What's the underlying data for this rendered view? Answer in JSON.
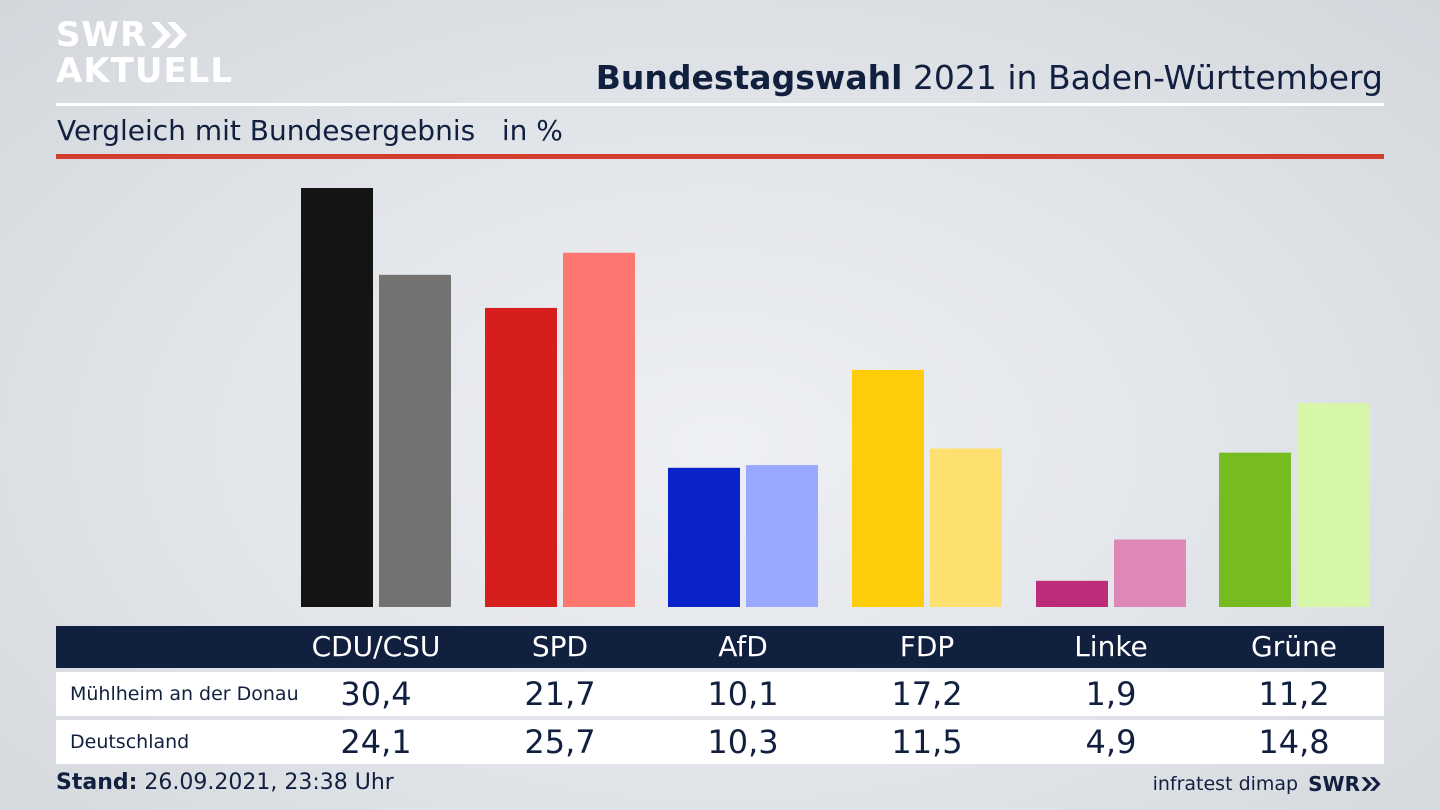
{
  "logo": {
    "line1": "SWR",
    "line2": "AKTUELL"
  },
  "header": {
    "title_bold": "Bundestagswahl",
    "title_rest": " 2021 in Baden-Württemberg"
  },
  "subtitle": "Vergleich mit Bundesergebnis   in %",
  "colors": {
    "navy": "#12203f",
    "accent_line": "#d23f2c",
    "local": [
      "#141414",
      "#d61e1e",
      "#0a23c8",
      "#ffcc0a",
      "#bb2d78",
      "#76bb1f"
    ],
    "national": [
      "#737270",
      "#ff7570",
      "#9aa9ff",
      "#fee070",
      "#df88b8",
      "#d5f7a7"
    ]
  },
  "chart_data": {
    "type": "bar",
    "title": "Bundestagswahl 2021 in Baden-Württemberg",
    "subtitle": "Vergleich mit Bundesergebnis in %",
    "categories": [
      "CDU/CSU",
      "SPD",
      "AfD",
      "FDP",
      "Linke",
      "Grüne"
    ],
    "series": [
      {
        "name": "Mühlheim an der Donau",
        "values": [
          30.4,
          21.7,
          10.1,
          17.2,
          1.9,
          11.2
        ]
      },
      {
        "name": "Deutschland",
        "values": [
          24.1,
          25.7,
          10.3,
          11.5,
          4.9,
          14.8
        ]
      }
    ],
    "value_labels": {
      "Mühlheim an der Donau": [
        "30,4",
        "21,7",
        "10,1",
        "17,2",
        "1,9",
        "11,2"
      ],
      "Deutschland": [
        "24,1",
        "25,7",
        "10,3",
        "11,5",
        "4,9",
        "14,8"
      ]
    },
    "ylim": [
      0,
      30.4
    ],
    "xlabel": "",
    "ylabel": "",
    "grid": false
  },
  "table": {
    "rows": [
      {
        "label": "Mühlheim an der Donau"
      },
      {
        "label": "Deutschland"
      }
    ]
  },
  "footer": {
    "stand_label": "Stand:",
    "stand_value": " 26.09.2021, 23:38 Uhr"
  },
  "source": {
    "name": "infratest dimap",
    "brand": "SWR"
  }
}
